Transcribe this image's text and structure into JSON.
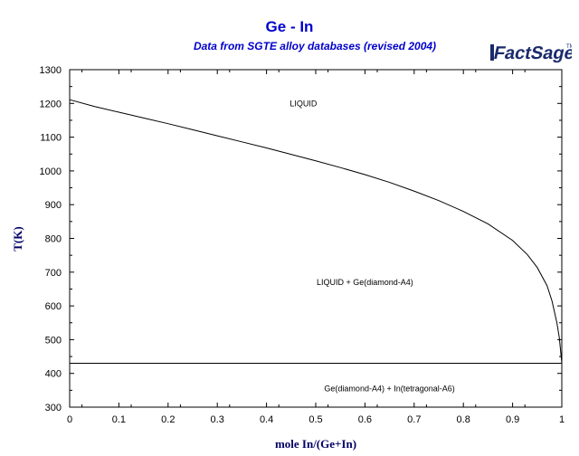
{
  "chart_data": {
    "type": "line",
    "title": "Ge - In",
    "subtitle": "Data from SGTE alloy databases (revised 2004)",
    "xlabel": "mole In/(Ge+In)",
    "ylabel": "T(K)",
    "xlim": [
      0,
      1
    ],
    "ylim": [
      300,
      1300
    ],
    "x_ticks": [
      0,
      0.1,
      0.2,
      0.3,
      0.4,
      0.5,
      0.6,
      0.7,
      0.8,
      0.9,
      1
    ],
    "x_tick_labels": [
      "0",
      "0.1",
      "0.2",
      "0.3",
      "0.4",
      "0.5",
      "0.6",
      "0.7",
      "0.8",
      "0.9",
      "1"
    ],
    "y_ticks": [
      300,
      400,
      500,
      600,
      700,
      800,
      900,
      1000,
      1100,
      1200,
      1300
    ],
    "y_tick_labels": [
      "300",
      "400",
      "500",
      "600",
      "700",
      "800",
      "900",
      "1000",
      "1100",
      "1200",
      "1300"
    ],
    "grid": false,
    "series": [
      {
        "role": "liquidus",
        "x": [
          0,
          0.05,
          0.1,
          0.15,
          0.2,
          0.25,
          0.3,
          0.35,
          0.4,
          0.45,
          0.5,
          0.55,
          0.6,
          0.65,
          0.7,
          0.75,
          0.8,
          0.85,
          0.9,
          0.93,
          0.95,
          0.97,
          0.98,
          0.99,
          0.995,
          1.0
        ],
        "y": [
          1211,
          1191,
          1174,
          1157,
          1140,
          1122,
          1104,
          1086,
          1068,
          1049,
          1030,
          1010,
          989,
          966,
          940,
          912,
          880,
          843,
          794,
          752,
          714,
          660,
          615,
          550,
          505,
          430
        ]
      },
      {
        "role": "eutectic",
        "x": [
          0,
          1
        ],
        "y": [
          430,
          430
        ]
      }
    ],
    "annotations": [
      {
        "text": "LIQUID",
        "x": 0.475,
        "y": 1200
      },
      {
        "text": "LIQUID + Ge(diamond-A4)",
        "x": 0.6,
        "y": 670
      },
      {
        "text": "Ge(diamond-A4) + In(tetragonal-A6)",
        "x": 0.65,
        "y": 355
      }
    ],
    "colors": {
      "title": "#0000cc",
      "axis_label": "#000066",
      "line": "#000000",
      "logo_primary": "#1a2a6c"
    }
  },
  "logo": {
    "text": "FactSage",
    "mark": "TM",
    "icon": "factsage-logo-icon"
  }
}
